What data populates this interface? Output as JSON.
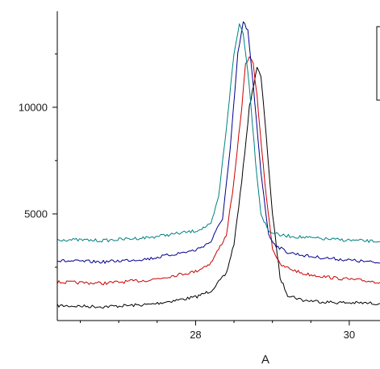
{
  "chart_data": {
    "type": "line",
    "title": "",
    "xlabel": "A",
    "ylabel": "",
    "xlim": [
      26.2,
      30.4
    ],
    "ylim": [
      0,
      14500
    ],
    "x_ticks": [
      {
        "value": 28,
        "label": "28"
      },
      {
        "value": 30,
        "label": "30"
      }
    ],
    "y_ticks": [
      {
        "value": 5000,
        "label": "5000"
      },
      {
        "value": 10000,
        "label": "10000"
      }
    ],
    "grid": false,
    "legend": "top-right, partially cropped",
    "series": [
      {
        "color": "#000000",
        "x": [
          26.2,
          26.8,
          27.4,
          28.0,
          28.2,
          28.4,
          28.5,
          28.6,
          28.7,
          28.8,
          28.85,
          28.9,
          29.0,
          29.1,
          29.2,
          29.4,
          29.8,
          30.4
        ],
        "y": [
          700,
          650,
          750,
          1100,
          1400,
          2200,
          3600,
          6500,
          10000,
          11900,
          11400,
          9500,
          5000,
          2000,
          1200,
          950,
          850,
          800
        ]
      },
      {
        "color": "#cc0000",
        "x": [
          26.2,
          26.8,
          27.4,
          28.0,
          28.2,
          28.4,
          28.5,
          28.6,
          28.65,
          28.7,
          28.75,
          28.8,
          28.9,
          29.0,
          29.1,
          29.4,
          29.8,
          30.4
        ],
        "y": [
          1800,
          1750,
          1900,
          2300,
          2700,
          4000,
          6500,
          10000,
          12000,
          12400,
          12000,
          10500,
          6500,
          3400,
          2600,
          2200,
          2000,
          1800
        ]
      },
      {
        "color": "#00008b",
        "x": [
          26.2,
          26.8,
          27.4,
          28.0,
          28.2,
          28.35,
          28.45,
          28.55,
          28.62,
          28.68,
          28.75,
          28.85,
          28.95,
          29.05,
          29.2,
          29.5,
          29.8,
          30.4
        ],
        "y": [
          2800,
          2750,
          2900,
          3300,
          3700,
          4800,
          8000,
          12500,
          14000,
          13600,
          11000,
          7000,
          4000,
          3500,
          3200,
          3000,
          2900,
          2700
        ]
      },
      {
        "color": "#008080",
        "x": [
          26.2,
          26.8,
          27.4,
          28.0,
          28.2,
          28.3,
          28.4,
          28.5,
          28.57,
          28.62,
          28.7,
          28.78,
          28.85,
          28.95,
          29.1,
          29.4,
          29.8,
          30.4
        ],
        "y": [
          3800,
          3750,
          3900,
          4200,
          4500,
          5800,
          9000,
          12500,
          13900,
          13500,
          11000,
          7500,
          5000,
          4200,
          4000,
          3900,
          3800,
          3700
        ]
      }
    ]
  }
}
